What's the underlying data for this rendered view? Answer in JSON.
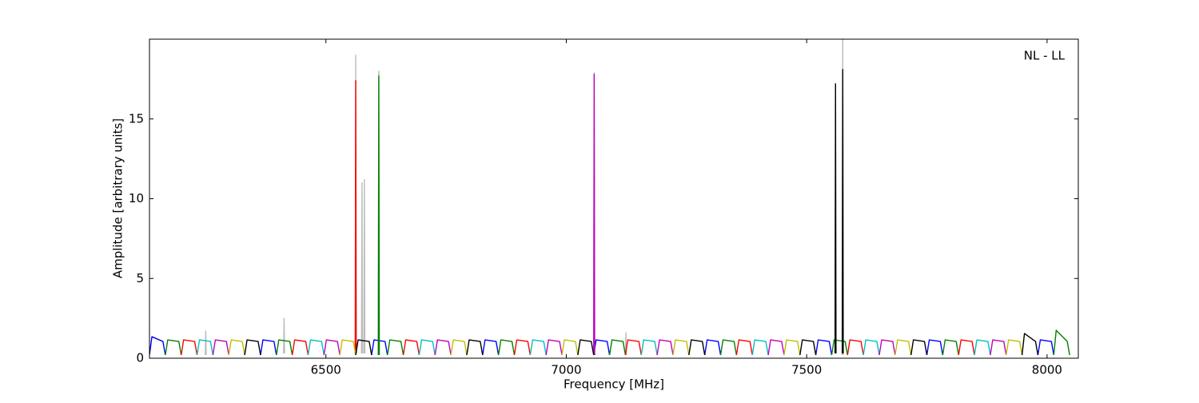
{
  "chart_data": {
    "type": "line",
    "annotation": "NL - LL",
    "x_label": "Frequency [MHz]",
    "y_label": "Amplitude [arbitrary units]",
    "xlim": [
      6133,
      8065
    ],
    "ylim": [
      0,
      20
    ],
    "xticks": [
      6500,
      7000,
      7500,
      8000
    ],
    "yticks": [
      0,
      5,
      10,
      15
    ],
    "grid": false,
    "series": [
      {
        "color": "#bbbbbb",
        "x": [
          6249,
          6250,
          6251,
          null,
          6412,
          6413,
          6414,
          null,
          6561,
          6562,
          6563,
          null,
          6574,
          6575,
          6576,
          null,
          6579,
          6580,
          6581,
          null,
          6609,
          6610,
          6611,
          null,
          7057,
          7058,
          7059,
          null,
          7123,
          7124,
          7125,
          null,
          7574,
          7575,
          7576
        ],
        "values": [
          0.2,
          1.7,
          0.2,
          null,
          0.3,
          2.5,
          0.3,
          null,
          0.3,
          19.0,
          0.3,
          null,
          0.3,
          11.0,
          0.3,
          null,
          0.3,
          11.2,
          0.3,
          null,
          0.2,
          18.0,
          0.2,
          null,
          0.2,
          17.9,
          0.2,
          null,
          0.2,
          1.6,
          0.2,
          null,
          0.2,
          20,
          0.2
        ]
      },
      {
        "color": "#0000ff",
        "x": [
          6133,
          6138,
          6161,
          6166,
          null,
          6364,
          6369,
          6392,
          6397,
          null,
          6595,
          6600,
          6623,
          6628,
          null,
          6826,
          6831,
          6854,
          6859,
          null,
          7057,
          7062,
          7085,
          7090,
          null,
          7288,
          7293,
          7316,
          7321,
          null,
          7519,
          7524,
          7547,
          7552,
          null,
          7750,
          7755,
          7778,
          7783,
          null,
          7981,
          7986,
          8009,
          8014
        ],
        "values": [
          0.2,
          1.35,
          1.05,
          0.2,
          null,
          0.2,
          1.15,
          1.05,
          0.2,
          null,
          0.2,
          1.15,
          1.05,
          0.2,
          null,
          0.2,
          1.15,
          1.05,
          0.2,
          null,
          0.2,
          1.15,
          1.05,
          0.2,
          null,
          0.2,
          1.15,
          1.05,
          0.2,
          null,
          0.2,
          1.15,
          1.05,
          0.2,
          null,
          0.2,
          1.15,
          1.05,
          0.2,
          null,
          0.2,
          1.15,
          1.05,
          0.2
        ]
      },
      {
        "color": "#008000",
        "x": [
          6166,
          6171,
          6194,
          6199,
          null,
          6397,
          6402,
          6425,
          6430,
          null,
          6628,
          6633,
          6656,
          6661,
          null,
          6859,
          6864,
          6887,
          6892,
          null,
          7090,
          7095,
          7118,
          7123,
          null,
          7321,
          7326,
          7349,
          7354,
          null,
          7552,
          7557,
          7580,
          7585,
          null,
          7783,
          7788,
          7811,
          7816,
          null,
          8014,
          8019,
          8042,
          8047,
          null,
          6609,
          6610,
          6611
        ],
        "values": [
          0.2,
          1.15,
          1.05,
          0.2,
          null,
          0.2,
          1.15,
          1.05,
          0.2,
          null,
          0.2,
          1.15,
          1.05,
          0.2,
          null,
          0.2,
          1.15,
          1.05,
          0.2,
          null,
          0.2,
          1.15,
          1.05,
          0.2,
          null,
          0.2,
          1.15,
          1.05,
          0.2,
          null,
          0.2,
          1.15,
          1.05,
          0.2,
          null,
          0.2,
          1.15,
          1.05,
          0.2,
          null,
          0.2,
          1.75,
          1.05,
          0.2,
          null,
          0.2,
          17.7,
          0.2
        ]
      },
      {
        "color": "#ff0000",
        "x": [
          6199,
          6204,
          6227,
          6232,
          null,
          6430,
          6435,
          6458,
          6463,
          null,
          6661,
          6666,
          6689,
          6694,
          null,
          6892,
          6897,
          6920,
          6925,
          null,
          7123,
          7128,
          7151,
          7156,
          null,
          7354,
          7359,
          7382,
          7387,
          null,
          7585,
          7590,
          7613,
          7618,
          null,
          7816,
          7821,
          7844,
          7849,
          null,
          6561,
          6562,
          6563
        ],
        "values": [
          0.2,
          1.15,
          1.05,
          0.2,
          null,
          0.2,
          1.15,
          1.05,
          0.2,
          null,
          0.2,
          1.15,
          1.05,
          0.2,
          null,
          0.2,
          1.15,
          1.05,
          0.2,
          null,
          0.2,
          1.15,
          1.05,
          0.2,
          null,
          0.2,
          1.15,
          1.05,
          0.2,
          null,
          0.2,
          1.15,
          1.05,
          0.2,
          null,
          0.2,
          1.15,
          1.05,
          0.2,
          null,
          0.3,
          17.4,
          0.3
        ]
      },
      {
        "color": "#00bfbf",
        "x": [
          6232,
          6237,
          6260,
          6265,
          null,
          6463,
          6468,
          6491,
          6496,
          null,
          6694,
          6699,
          6722,
          6727,
          null,
          6925,
          6930,
          6953,
          6958,
          null,
          7156,
          7161,
          7184,
          7189,
          null,
          7387,
          7392,
          7415,
          7420,
          null,
          7618,
          7623,
          7646,
          7651,
          null,
          7849,
          7854,
          7877,
          7882
        ],
        "values": [
          0.2,
          1.15,
          1.05,
          0.2,
          null,
          0.2,
          1.15,
          1.05,
          0.2,
          null,
          0.2,
          1.15,
          1.05,
          0.2,
          null,
          0.2,
          1.15,
          1.05,
          0.2,
          null,
          0.2,
          1.15,
          1.05,
          0.2,
          null,
          0.2,
          1.15,
          1.05,
          0.2,
          null,
          0.2,
          1.15,
          1.05,
          0.2,
          null,
          0.2,
          1.15,
          1.05,
          0.2
        ]
      },
      {
        "color": "#bf00bf",
        "x": [
          6265,
          6270,
          6293,
          6298,
          null,
          6496,
          6501,
          6524,
          6529,
          null,
          6727,
          6732,
          6755,
          6760,
          null,
          6958,
          6963,
          6986,
          6991,
          null,
          7189,
          7194,
          7217,
          7222,
          null,
          7420,
          7425,
          7448,
          7453,
          null,
          7651,
          7656,
          7679,
          7684,
          null,
          7882,
          7887,
          7910,
          7915,
          null,
          7057,
          7058,
          7059
        ],
        "values": [
          0.2,
          1.15,
          1.05,
          0.2,
          null,
          0.2,
          1.15,
          1.05,
          0.2,
          null,
          0.2,
          1.15,
          1.05,
          0.2,
          null,
          0.2,
          1.15,
          1.05,
          0.2,
          null,
          0.2,
          1.15,
          1.05,
          0.2,
          null,
          0.2,
          1.15,
          1.05,
          0.2,
          null,
          0.2,
          1.15,
          1.05,
          0.2,
          null,
          0.2,
          1.15,
          1.05,
          0.2,
          null,
          0.2,
          17.8,
          0.2
        ]
      },
      {
        "color": "#bfbf00",
        "x": [
          6298,
          6303,
          6326,
          6331,
          null,
          6529,
          6534,
          6557,
          6562,
          null,
          6760,
          6765,
          6788,
          6793,
          null,
          6991,
          6996,
          7019,
          7024,
          null,
          7222,
          7227,
          7250,
          7255,
          null,
          7453,
          7458,
          7481,
          7486,
          null,
          7684,
          7689,
          7712,
          7717,
          null,
          7915,
          7920,
          7943,
          7948
        ],
        "values": [
          0.2,
          1.15,
          1.05,
          0.2,
          null,
          0.2,
          1.15,
          1.05,
          0.2,
          null,
          0.2,
          1.15,
          1.05,
          0.2,
          null,
          0.2,
          1.15,
          1.05,
          0.2,
          null,
          0.2,
          1.15,
          1.05,
          0.2,
          null,
          0.2,
          1.15,
          1.05,
          0.2,
          null,
          0.2,
          1.15,
          1.05,
          0.2,
          null,
          0.2,
          1.15,
          1.05,
          0.2
        ]
      },
      {
        "color": "#000000",
        "x": [
          6331,
          6336,
          6359,
          6364,
          null,
          6562,
          6567,
          6590,
          6595,
          null,
          6793,
          6798,
          6821,
          6826,
          null,
          7024,
          7029,
          7052,
          7057,
          null,
          7255,
          7260,
          7283,
          7288,
          null,
          7486,
          7491,
          7514,
          7519,
          null,
          7717,
          7722,
          7745,
          7750,
          null,
          7948,
          7953,
          7976,
          7981,
          null,
          7559,
          7560,
          7561,
          null,
          7574,
          7575,
          7576
        ],
        "values": [
          0.2,
          1.15,
          1.05,
          0.2,
          null,
          0.2,
          1.15,
          1.05,
          0.2,
          null,
          0.2,
          1.15,
          1.05,
          0.2,
          null,
          0.2,
          1.15,
          1.05,
          0.2,
          null,
          0.2,
          1.15,
          1.05,
          0.2,
          null,
          0.2,
          1.15,
          1.05,
          0.2,
          null,
          0.2,
          1.15,
          1.05,
          0.2,
          null,
          0.2,
          1.55,
          1.05,
          0.2,
          null,
          0.3,
          17.2,
          0.3,
          null,
          0.3,
          18.1,
          0.3
        ]
      }
    ]
  }
}
